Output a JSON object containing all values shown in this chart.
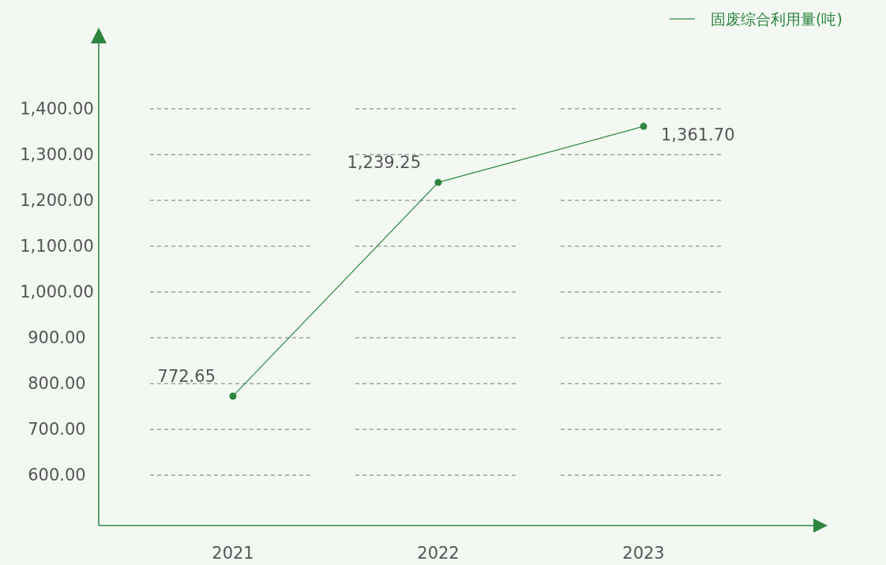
{
  "chart_data": {
    "type": "line",
    "categories": [
      "2021",
      "2022",
      "2023"
    ],
    "series": [
      {
        "name": "固废综合利用量(吨)",
        "color": "#2e8540",
        "values": [
          772.65,
          1239.25,
          1361.7
        ],
        "value_labels": [
          "772.65",
          "1,239.25",
          "1,361.70"
        ]
      }
    ],
    "ylim": [
      490,
      1560
    ],
    "yticks": [
      {
        "value": 600,
        "label": "600.00"
      },
      {
        "value": 700,
        "label": "700.00"
      },
      {
        "value": 800,
        "label": "800.00"
      },
      {
        "value": 900,
        "label": "900.00"
      },
      {
        "value": 1000,
        "label": "1,000.00"
      },
      {
        "value": 1100,
        "label": "1,100.00"
      },
      {
        "value": 1200,
        "label": "1,200.00"
      },
      {
        "value": 1300,
        "label": "1,300.00"
      },
      {
        "value": 1400,
        "label": "1,400.00"
      }
    ],
    "grid": "y",
    "legend": "top right",
    "marker": "circle",
    "line_style": "solid"
  }
}
